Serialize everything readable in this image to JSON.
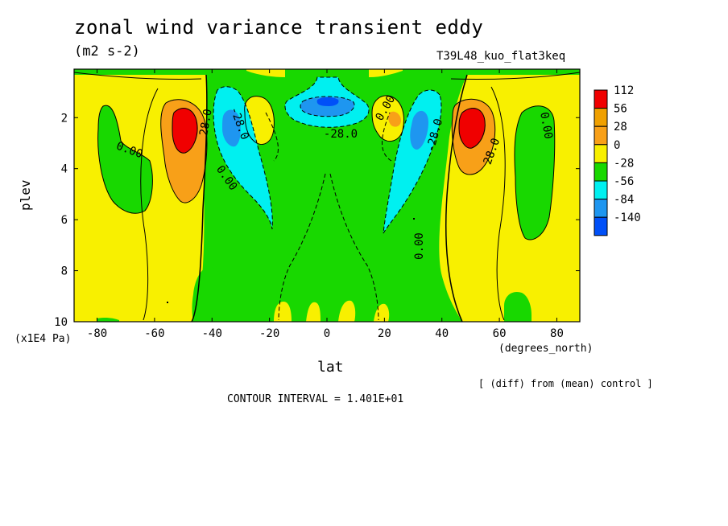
{
  "header": {
    "title": "zonal wind variance transient eddy",
    "units": "(m2 s-2)",
    "run_name": "T39L48_kuo_flat3keq"
  },
  "axes": {
    "ylabel": "plev",
    "yunit": "(x1E4 Pa)",
    "xlabel": "lat",
    "xunit": "(degrees_north)"
  },
  "footer": {
    "note": "[ (diff) from (mean) control ]",
    "contour_interval": "CONTOUR INTERVAL = 1.401E+01"
  },
  "chart_data": {
    "type": "contour",
    "title": "zonal wind variance transient eddy",
    "subtitle": "(m2 s-2)",
    "xlabel": "lat",
    "ylabel": "plev",
    "xlim": [
      -88,
      88
    ],
    "ylim": [
      10,
      0.1
    ],
    "x_ticks": [
      -80,
      -60,
      -40,
      -20,
      0,
      20,
      40,
      60,
      80
    ],
    "y_ticks": [
      2,
      4,
      6,
      8,
      10
    ],
    "legend": {
      "position": "right",
      "labels": [
        "112",
        "56",
        "28",
        "0",
        "-28",
        "-56",
        "-84",
        "-140"
      ],
      "colors": [
        "#f00000",
        "#f0a000",
        "#f8a018",
        "#f8f000",
        "#18d800",
        "#00f0f0",
        "#1e96f0",
        "#0050f8"
      ]
    },
    "contour_labels": [
      "0.00",
      "0.00",
      "0.00",
      "0.00",
      "0.00",
      "-28.0",
      "-28.0",
      "-28.0",
      "28.0",
      "28.0"
    ],
    "features": [
      {
        "name": "SH jet maximum",
        "lat": -50,
        "plev": 2.6,
        "value": 112
      },
      {
        "name": "NH jet maximum",
        "lat": 50,
        "plev": 2.5,
        "value": 112
      },
      {
        "name": "SH subtropical minimum",
        "lat": -34,
        "plev": 2.8,
        "value": -84
      },
      {
        "name": "NH subtropical minimum",
        "lat": 33,
        "plev": 2.6,
        "value": -84
      },
      {
        "name": "equatorial upper minimum",
        "lat": 0,
        "plev": 1.5,
        "value": -84
      }
    ]
  }
}
